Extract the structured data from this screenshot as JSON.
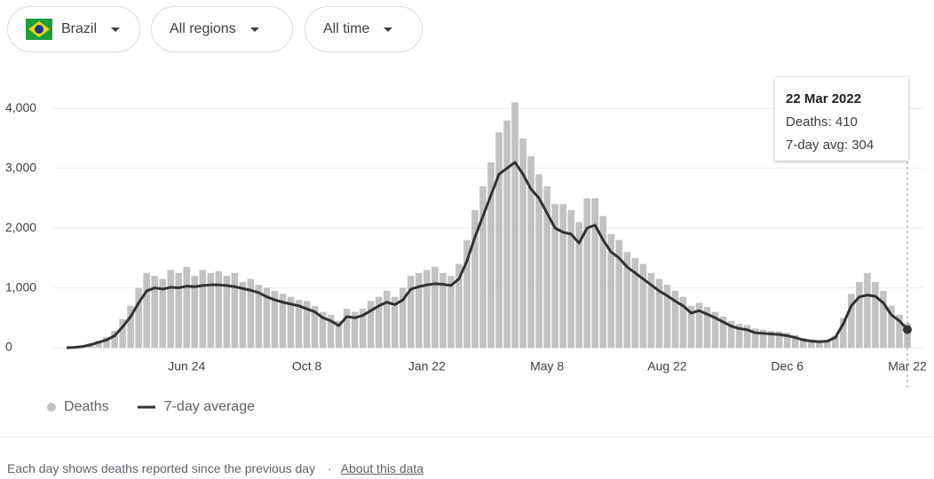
{
  "controls": {
    "country": "Brazil",
    "region": "All regions",
    "time": "All time"
  },
  "footer": {
    "note": "Each day shows deaths reported since the previous day",
    "separator": "·",
    "link": "About this data"
  },
  "chart_data": {
    "type": "bar",
    "categories": [
      null,
      null,
      null,
      null,
      null,
      null,
      null,
      null,
      null,
      null,
      null,
      null,
      null,
      null,
      null,
      "Jun 24",
      null,
      null,
      null,
      null,
      null,
      null,
      null,
      null,
      null,
      null,
      null,
      null,
      null,
      null,
      "Oct 8",
      null,
      null,
      null,
      null,
      null,
      null,
      null,
      null,
      null,
      null,
      null,
      null,
      null,
      null,
      "Jan 22",
      null,
      null,
      null,
      null,
      null,
      null,
      null,
      null,
      null,
      null,
      null,
      null,
      null,
      null,
      "May 8",
      null,
      null,
      null,
      null,
      null,
      null,
      null,
      null,
      null,
      null,
      null,
      null,
      null,
      null,
      "Aug 22",
      null,
      null,
      null,
      null,
      null,
      null,
      null,
      null,
      null,
      null,
      null,
      null,
      null,
      null,
      "Dec 6",
      null,
      null,
      null,
      null,
      null,
      null,
      null,
      null,
      null,
      null,
      null,
      null,
      null,
      null,
      "Mar 22"
    ],
    "series": [
      {
        "name": "Deaths",
        "type": "bar",
        "color": "#c2c2c2",
        "values": [
          0,
          8,
          30,
          70,
          120,
          180,
          280,
          480,
          700,
          1000,
          1250,
          1200,
          1150,
          1300,
          1250,
          1350,
          1200,
          1300,
          1250,
          1280,
          1200,
          1250,
          1100,
          1150,
          1050,
          1000,
          950,
          900,
          850,
          800,
          780,
          700,
          600,
          550,
          450,
          650,
          600,
          650,
          780,
          850,
          950,
          850,
          1000,
          1200,
          1250,
          1300,
          1350,
          1250,
          1200,
          1400,
          1800,
          2300,
          2700,
          3100,
          3600,
          3800,
          4100,
          3500,
          3200,
          2900,
          2700,
          2400,
          2400,
          2300,
          2100,
          2500,
          2500,
          2200,
          1900,
          1800,
          1600,
          1500,
          1400,
          1250,
          1150,
          1050,
          950,
          850,
          700,
          750,
          680,
          600,
          520,
          450,
          400,
          380,
          320,
          300,
          280,
          270,
          250,
          210,
          160,
          140,
          120,
          130,
          200,
          500,
          900,
          1100,
          1250,
          1100,
          950,
          700,
          550,
          410
        ]
      },
      {
        "name": "7-day average",
        "type": "line",
        "color": "#333333",
        "values": [
          0,
          5,
          20,
          50,
          90,
          130,
          200,
          350,
          520,
          750,
          950,
          1000,
          980,
          1010,
          1000,
          1030,
          1020,
          1040,
          1050,
          1050,
          1040,
          1020,
          990,
          960,
          920,
          850,
          800,
          760,
          730,
          700,
          650,
          600,
          500,
          450,
          370,
          520,
          500,
          540,
          620,
          700,
          760,
          720,
          800,
          980,
          1020,
          1050,
          1070,
          1060,
          1040,
          1150,
          1450,
          1850,
          2200,
          2550,
          2900,
          3000,
          3100,
          2900,
          2650,
          2500,
          2250,
          2000,
          1930,
          1900,
          1750,
          2000,
          2050,
          1800,
          1600,
          1500,
          1350,
          1250,
          1150,
          1050,
          950,
          870,
          780,
          700,
          580,
          620,
          560,
          500,
          430,
          360,
          320,
          300,
          250,
          240,
          230,
          220,
          200,
          170,
          130,
          110,
          100,
          110,
          170,
          400,
          700,
          850,
          880,
          860,
          750,
          550,
          450,
          304
        ]
      }
    ],
    "ylim": [
      0,
      4300
    ],
    "yticks": [
      0,
      {
        "value": 1000,
        "label": "1,000"
      },
      {
        "value": 2000,
        "label": "2,000"
      },
      {
        "value": 3000,
        "label": "3,000"
      },
      {
        "value": 4000,
        "label": "4,000"
      }
    ],
    "grid": true,
    "tooltip": {
      "title": "22 Mar 2022",
      "labels": [
        "Deaths:",
        "7-day avg:"
      ]
    }
  }
}
